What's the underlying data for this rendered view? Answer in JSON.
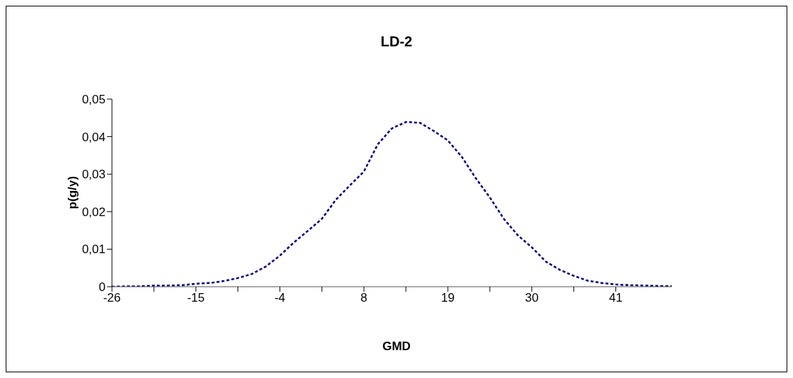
{
  "chart_data": {
    "type": "line",
    "title": "LD-2",
    "xlabel": "GMD",
    "ylabel": "p(g/y)",
    "categories": [
      "-26",
      null,
      null,
      null,
      null,
      null,
      "-15",
      null,
      null,
      null,
      null,
      null,
      "-4",
      null,
      null,
      null,
      null,
      null,
      "8",
      null,
      null,
      null,
      null,
      null,
      "19",
      null,
      null,
      null,
      null,
      null,
      "30",
      null,
      null,
      null,
      null,
      null,
      "41",
      null,
      null,
      null,
      null
    ],
    "series": [
      {
        "color": "#000080",
        "values": [
          0,
          0.0001,
          0.0001,
          0.0003,
          0.0003,
          0.0004,
          0.0008,
          0.001,
          0.0015,
          0.0023,
          0.0034,
          0.0054,
          0.0083,
          0.0118,
          0.0149,
          0.0181,
          0.0232,
          0.027,
          0.0307,
          0.038,
          0.0422,
          0.0439,
          0.0437,
          0.0415,
          0.039,
          0.0346,
          0.0289,
          0.0238,
          0.0181,
          0.0137,
          0.0105,
          0.0067,
          0.0045,
          0.0029,
          0.0016,
          0.001,
          0.0006,
          0.0004,
          0.0003,
          0.0002,
          0.0001
        ]
      }
    ],
    "ylim": [
      0,
      0.05
    ],
    "yticks": [
      0,
      {
        "value": 0.01,
        "label": "0,01"
      },
      {
        "value": 0.02,
        "label": "0,02"
      },
      {
        "value": 0.03,
        "label": "0,03"
      },
      {
        "value": 0.04,
        "label": "0,04"
      },
      {
        "value": 0.05,
        "label": "0,05"
      }
    ],
    "grid": false,
    "legend": false,
    "marker": "none",
    "line_style": "dashed"
  }
}
